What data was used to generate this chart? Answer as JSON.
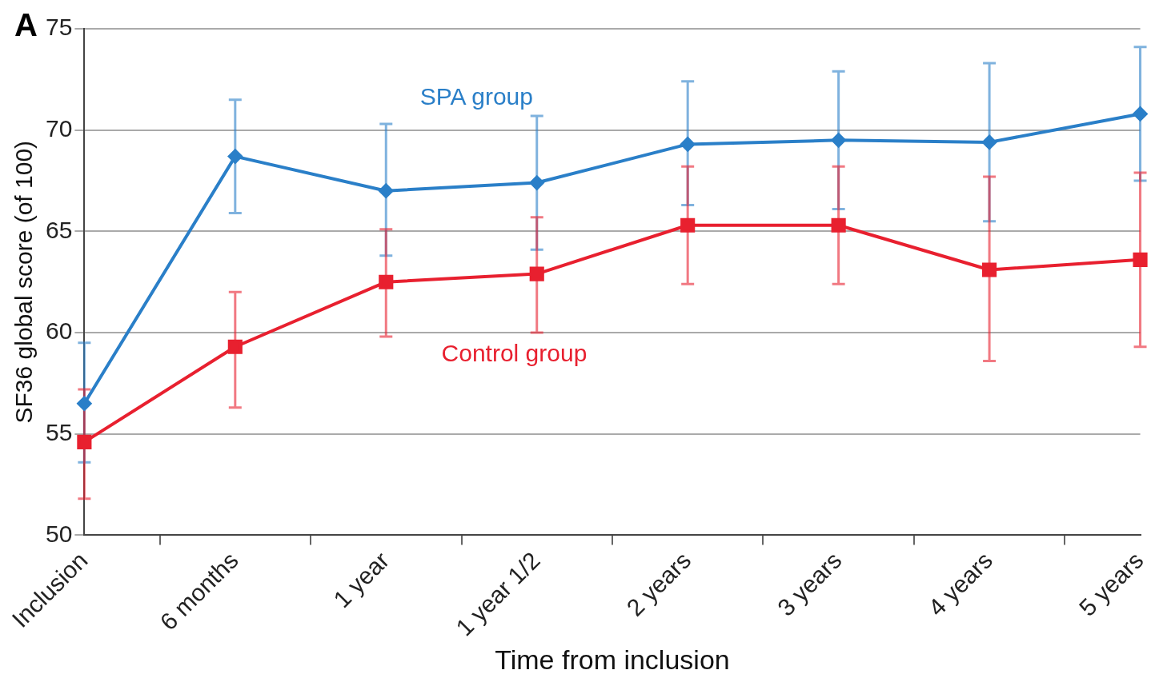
{
  "chart_data": {
    "type": "line",
    "xlabel": "Time from inclusion",
    "ylabel": "SF36 global score (of 100)",
    "categories": [
      "Inclusion",
      "6 months",
      "1 year",
      "1 year 1/2",
      "2 years",
      "3 years",
      "4 years",
      "5 years"
    ],
    "series": [
      {
        "name": "SPA group",
        "color": "#2a7fc8",
        "marker": "diamond",
        "values": [
          56.5,
          68.7,
          67.0,
          67.4,
          69.3,
          69.5,
          69.4,
          70.8
        ],
        "errors": [
          [
            53.6,
            59.5
          ],
          [
            65.9,
            71.5
          ],
          [
            63.8,
            70.3
          ],
          [
            64.1,
            70.7
          ],
          [
            66.3,
            72.4
          ],
          [
            66.1,
            72.9
          ],
          [
            65.5,
            73.3
          ],
          [
            67.5,
            74.1
          ]
        ]
      },
      {
        "name": "Control group",
        "color": "#e8202f",
        "marker": "square",
        "values": [
          54.6,
          59.3,
          62.5,
          62.9,
          65.3,
          65.3,
          63.1,
          63.6
        ],
        "errors": [
          [
            51.8,
            57.2
          ],
          [
            56.3,
            62.0
          ],
          [
            59.8,
            65.1
          ],
          [
            60.0,
            65.7
          ],
          [
            62.4,
            68.2
          ],
          [
            62.4,
            68.2
          ],
          [
            58.6,
            67.7
          ],
          [
            59.3,
            67.9
          ]
        ]
      }
    ],
    "ylim": [
      50,
      75
    ],
    "yticks": [
      50,
      55,
      60,
      65,
      70,
      75
    ],
    "grid": "y",
    "legend": false,
    "line_style": "solid",
    "annotations": [
      "A"
    ]
  }
}
